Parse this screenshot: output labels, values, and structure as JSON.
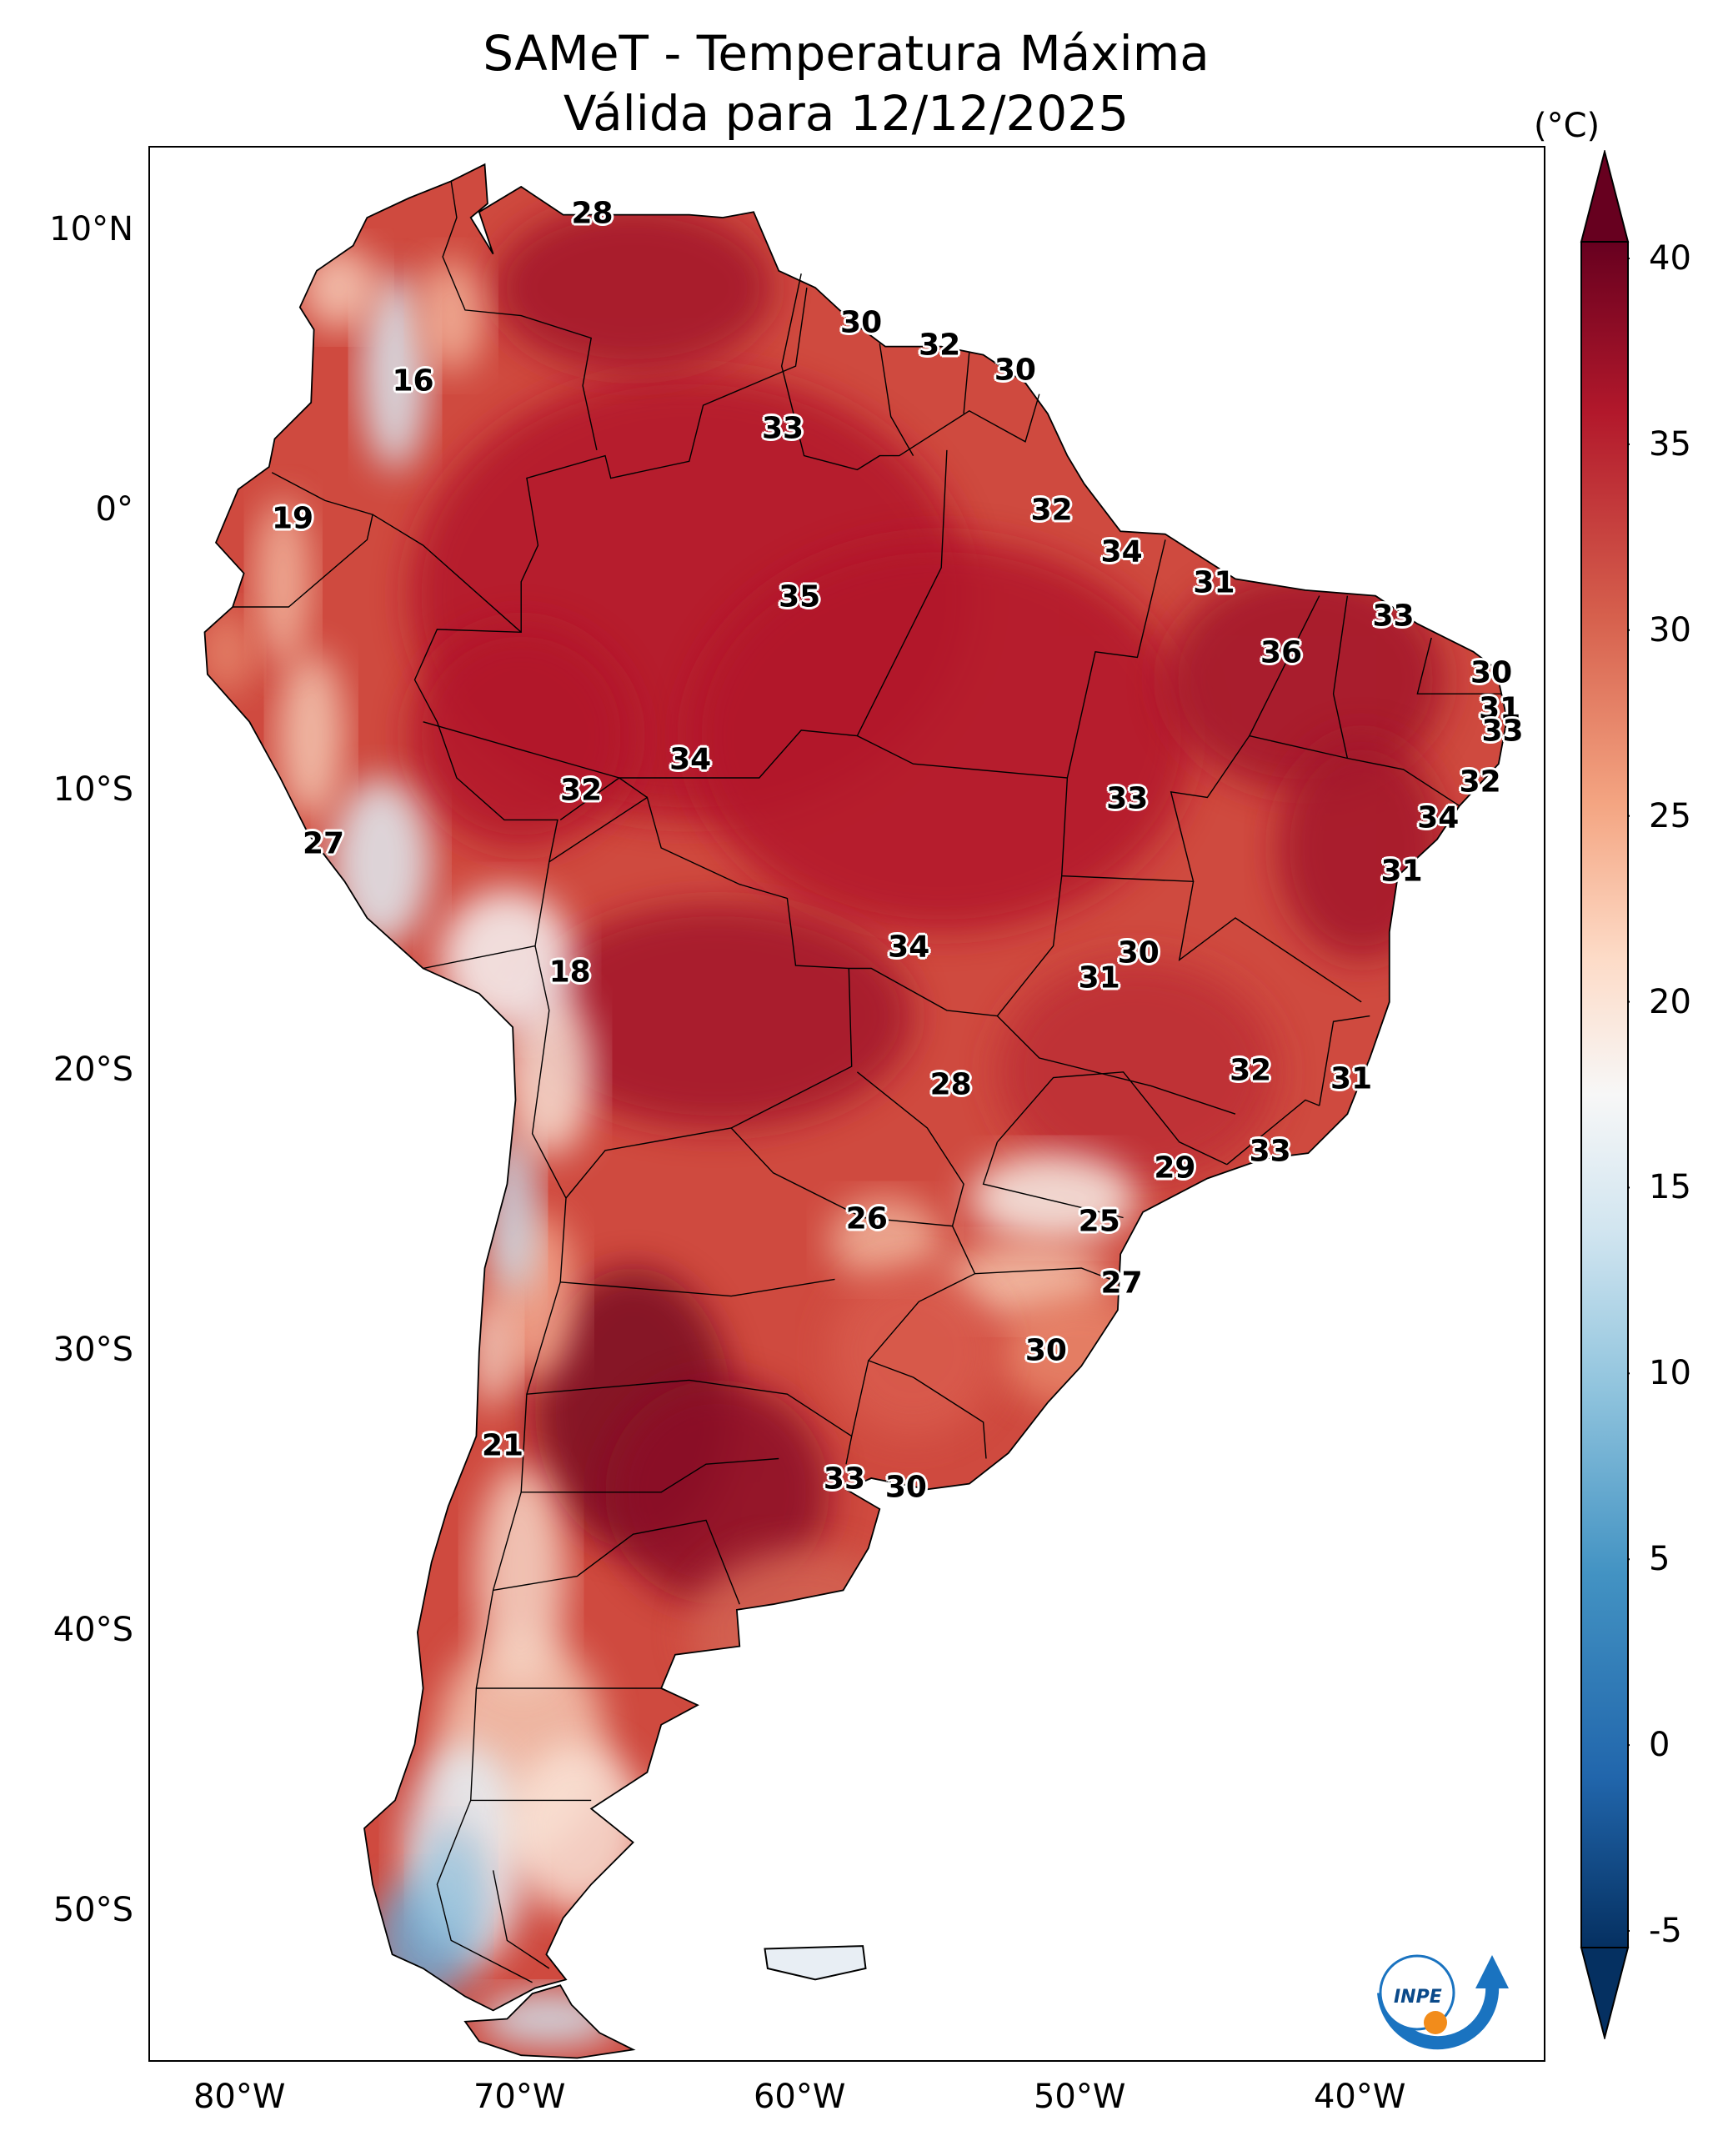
{
  "title": {
    "line1": "SAMeT - Temperatura Máxima",
    "line2": "Válida para 12/12/2025"
  },
  "axes": {
    "lat_ticks": [
      "10°N",
      "0°",
      "10°S",
      "20°S",
      "30°S",
      "40°S",
      "50°S"
    ],
    "lon_ticks": [
      "80°W",
      "70°W",
      "60°W",
      "50°W",
      "40°W"
    ]
  },
  "colorbar": {
    "unit": "(°C)",
    "ticks": [
      "40",
      "35",
      "30",
      "25",
      "20",
      "15",
      "10",
      "5",
      "0",
      "-5"
    ],
    "min": -5,
    "max": 40,
    "colors": {
      "dark_red": "#67001f",
      "red": "#b2182b",
      "light_red": "#d6604d",
      "salmon": "#f4a582",
      "pale": "#fddbc7",
      "white": "#f7f7f7",
      "pale_blue": "#d1e5f0",
      "light_blue": "#92c5de",
      "blue": "#4393c3",
      "dark_blue": "#2166ac",
      "navy": "#053061"
    }
  },
  "temperature_labels": [
    {
      "value": "28",
      "lat": 10.6,
      "lon": -67.4
    },
    {
      "value": "30",
      "lat": 6.7,
      "lon": -57.8
    },
    {
      "value": "32",
      "lat": 5.9,
      "lon": -55.0
    },
    {
      "value": "30",
      "lat": 5.0,
      "lon": -52.3
    },
    {
      "value": "16",
      "lat": 4.6,
      "lon": -73.8
    },
    {
      "value": "33",
      "lat": 2.9,
      "lon": -60.6
    },
    {
      "value": "32",
      "lat": 0.0,
      "lon": -51.0
    },
    {
      "value": "19",
      "lat": -0.3,
      "lon": -78.1
    },
    {
      "value": "34",
      "lat": -1.5,
      "lon": -48.5
    },
    {
      "value": "31",
      "lat": -2.6,
      "lon": -45.2
    },
    {
      "value": "35",
      "lat": -3.1,
      "lon": -60.0
    },
    {
      "value": "33",
      "lat": -3.8,
      "lon": -38.8
    },
    {
      "value": "36",
      "lat": -5.1,
      "lon": -42.8
    },
    {
      "value": "30",
      "lat": -5.8,
      "lon": -35.3
    },
    {
      "value": "31",
      "lat": -7.1,
      "lon": -35.0
    },
    {
      "value": "33",
      "lat": -7.9,
      "lon": -34.9
    },
    {
      "value": "34",
      "lat": -8.9,
      "lon": -63.9
    },
    {
      "value": "32",
      "lat": -10.0,
      "lon": -67.8
    },
    {
      "value": "32",
      "lat": -9.7,
      "lon": -35.7
    },
    {
      "value": "33",
      "lat": -10.3,
      "lon": -48.3
    },
    {
      "value": "27",
      "lat": -11.9,
      "lon": -77.0
    },
    {
      "value": "34",
      "lat": -11.0,
      "lon": -37.2
    },
    {
      "value": "31",
      "lat": -12.9,
      "lon": -38.5
    },
    {
      "value": "34",
      "lat": -15.6,
      "lon": -56.1
    },
    {
      "value": "30",
      "lat": -15.8,
      "lon": -47.9
    },
    {
      "value": "31",
      "lat": -16.7,
      "lon": -49.3
    },
    {
      "value": "18",
      "lat": -16.5,
      "lon": -68.2
    },
    {
      "value": "32",
      "lat": -20.0,
      "lon": -43.9
    },
    {
      "value": "28",
      "lat": -20.5,
      "lon": -54.6
    },
    {
      "value": "31",
      "lat": -20.3,
      "lon": -40.3
    },
    {
      "value": "33",
      "lat": -22.9,
      "lon": -43.2
    },
    {
      "value": "29",
      "lat": -23.5,
      "lon": -46.6
    },
    {
      "value": "26",
      "lat": -25.3,
      "lon": -57.6
    },
    {
      "value": "25",
      "lat": -25.4,
      "lon": -49.3
    },
    {
      "value": "27",
      "lat": -27.6,
      "lon": -48.5
    },
    {
      "value": "30",
      "lat": -30.0,
      "lon": -51.2
    },
    {
      "value": "21",
      "lat": -33.4,
      "lon": -70.6
    },
    {
      "value": "33",
      "lat": -34.6,
      "lon": -58.4
    },
    {
      "value": "30",
      "lat": -34.9,
      "lon": -56.2
    }
  ],
  "logo": {
    "text": "INPE"
  }
}
